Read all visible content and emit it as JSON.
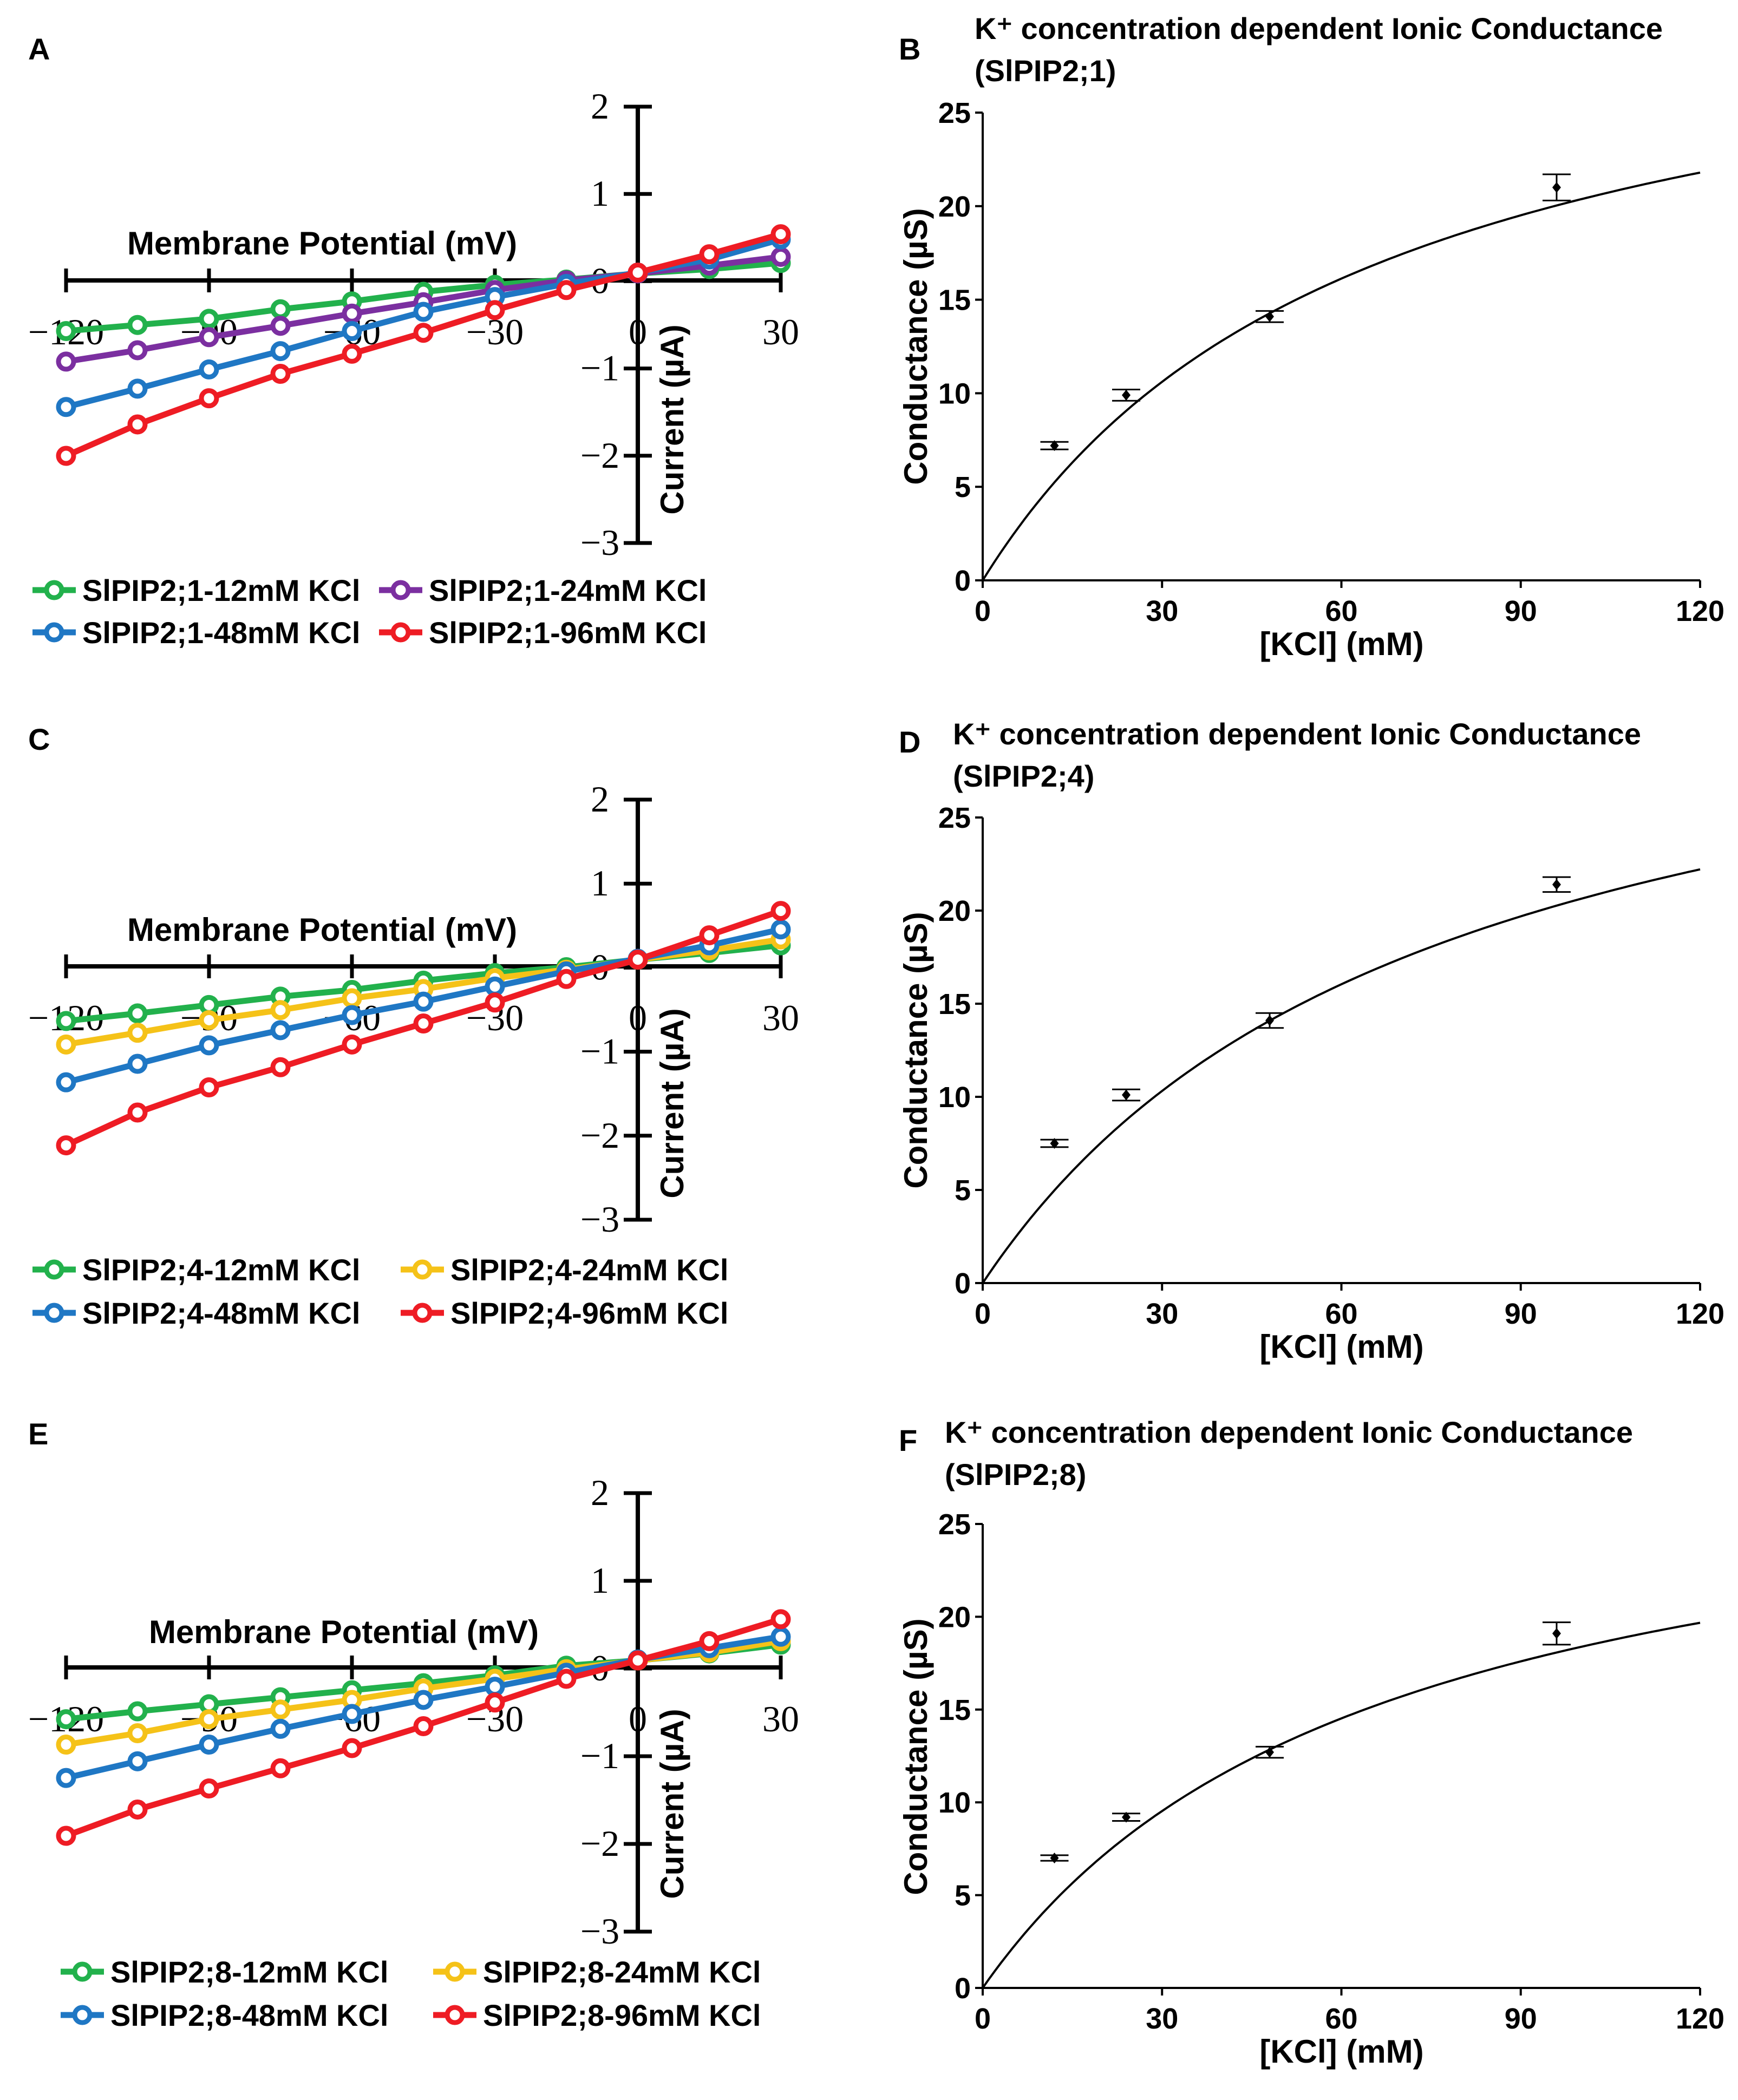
{
  "chart_data": [
    {
      "panel": "A",
      "type": "line",
      "title": "",
      "xlabel": "Membrane Potential (mV)",
      "ylabel": "Current (µA)",
      "xlim": [
        -120,
        30
      ],
      "ylim": [
        -3,
        2
      ],
      "x_ticks": [
        "−120",
        "−90",
        "−60",
        "−30",
        "0",
        "30"
      ],
      "y_ticks": [
        "2",
        "1",
        "0",
        "−1",
        "−2",
        "−3"
      ],
      "x": [
        -120,
        -105,
        -90,
        -75,
        -60,
        -45,
        -30,
        -15,
        0,
        15,
        30
      ],
      "series": [
        {
          "name": "SlPIP2;1-12mM KCl",
          "color": "#22b14c",
          "values": [
            -0.58,
            -0.51,
            -0.44,
            -0.33,
            -0.24,
            -0.13,
            -0.05,
            0.01,
            0.08,
            0.13,
            0.2
          ]
        },
        {
          "name": "SlPIP2;1-24mM KCl",
          "color": "#7b2fa0",
          "values": [
            -0.93,
            -0.8,
            -0.65,
            -0.52,
            -0.38,
            -0.25,
            -0.11,
            0.0,
            0.08,
            0.17,
            0.27
          ]
        },
        {
          "name": "SlPIP2;1-48mM KCl",
          "color": "#1f77c4",
          "values": [
            -1.45,
            -1.24,
            -1.02,
            -0.81,
            -0.58,
            -0.36,
            -0.19,
            -0.04,
            0.09,
            0.24,
            0.47
          ]
        },
        {
          "name": "SlPIP2;1-96mM KCl",
          "color": "#ee1c24",
          "values": [
            -2.01,
            -1.65,
            -1.35,
            -1.07,
            -0.84,
            -0.6,
            -0.34,
            -0.11,
            0.09,
            0.3,
            0.53
          ]
        }
      ]
    },
    {
      "panel": "B",
      "type": "line",
      "title": "K⁺ concentration dependent Ionic Conductance",
      "subtitle": "(SlPIP2;1)",
      "xlabel": "[KCl] (mM)",
      "ylabel": "Conductance (µS)",
      "xlim": [
        0,
        120
      ],
      "ylim": [
        0,
        25
      ],
      "x_ticks": [
        "0",
        "30",
        "60",
        "90",
        "120"
      ],
      "y_ticks": [
        "0",
        "5",
        "10",
        "15",
        "20",
        "25"
      ],
      "fit": {
        "model": "michaelis-menten",
        "vmax": 33.6,
        "km": 65
      },
      "points": {
        "x": [
          12,
          24,
          48,
          96
        ],
        "y": [
          7.2,
          9.9,
          14.1,
          21.0
        ],
        "err": [
          0.2,
          0.3,
          0.3,
          0.7
        ]
      }
    },
    {
      "panel": "C",
      "type": "line",
      "title": "",
      "xlabel": "Membrane Potential (mV)",
      "ylabel": "Current (µA)",
      "xlim": [
        -120,
        30
      ],
      "ylim": [
        -3,
        2
      ],
      "x_ticks": [
        "−120",
        "−90",
        "−60",
        "−30",
        "0",
        "30"
      ],
      "y_ticks": [
        "2",
        "1",
        "0",
        "−1",
        "−2",
        "−3"
      ],
      "x": [
        -120,
        -105,
        -90,
        -75,
        -60,
        -45,
        -30,
        -15,
        0,
        15,
        30
      ],
      "series": [
        {
          "name": "SlPIP2;4-12mM KCl",
          "color": "#22b14c",
          "values": [
            -0.65,
            -0.56,
            -0.46,
            -0.36,
            -0.28,
            -0.17,
            -0.08,
            -0.01,
            0.08,
            0.16,
            0.25
          ]
        },
        {
          "name": "SlPIP2;4-24mM KCl",
          "color": "#f5c218",
          "values": [
            -0.93,
            -0.79,
            -0.64,
            -0.52,
            -0.38,
            -0.27,
            -0.14,
            -0.04,
            0.08,
            0.19,
            0.32
          ]
        },
        {
          "name": "SlPIP2;4-48mM KCl",
          "color": "#1f77c4",
          "values": [
            -1.38,
            -1.16,
            -0.94,
            -0.76,
            -0.58,
            -0.42,
            -0.24,
            -0.06,
            0.09,
            0.25,
            0.44
          ]
        },
        {
          "name": "SlPIP2;4-96mM KCl",
          "color": "#ee1c24",
          "values": [
            -2.13,
            -1.74,
            -1.44,
            -1.2,
            -0.93,
            -0.68,
            -0.43,
            -0.15,
            0.08,
            0.37,
            0.66
          ]
        }
      ]
    },
    {
      "panel": "D",
      "type": "line",
      "title": "K⁺ concentration dependent Ionic Conductance",
      "subtitle": "(SlPIP2;4)",
      "xlabel": "[KCl] (mM)",
      "ylabel": "Conductance (µS)",
      "xlim": [
        0,
        120
      ],
      "ylim": [
        0,
        25
      ],
      "x_ticks": [
        "0",
        "30",
        "60",
        "90",
        "120"
      ],
      "y_ticks": [
        "0",
        "5",
        "10",
        "15",
        "20",
        "25"
      ],
      "fit": {
        "model": "michaelis-menten",
        "vmax": 36.1,
        "km": 75
      },
      "points": {
        "x": [
          12,
          24,
          48,
          96
        ],
        "y": [
          7.5,
          10.1,
          14.1,
          21.4
        ],
        "err": [
          0.2,
          0.3,
          0.4,
          0.4
        ]
      }
    },
    {
      "panel": "E",
      "type": "line",
      "title": "",
      "xlabel": "Membrane Potential (mV)",
      "ylabel": "Current (µA)",
      "xlim": [
        -120,
        30
      ],
      "ylim": [
        -3,
        2
      ],
      "x_ticks": [
        "−120",
        "−90",
        "−60",
        "−30",
        "0",
        "30"
      ],
      "y_ticks": [
        "2",
        "1",
        "0",
        "−1",
        "−2",
        "−3"
      ],
      "x": [
        -120,
        -105,
        -90,
        -75,
        -60,
        -45,
        -30,
        -15,
        0,
        15,
        30
      ],
      "series": [
        {
          "name": "SlPIP2;8-12mM KCl",
          "color": "#22b14c",
          "values": [
            -0.59,
            -0.5,
            -0.42,
            -0.34,
            -0.26,
            -0.18,
            -0.09,
            0.02,
            0.08,
            0.16,
            0.26
          ]
        },
        {
          "name": "SlPIP2;8-24mM KCl",
          "color": "#f5c218",
          "values": [
            -0.88,
            -0.75,
            -0.59,
            -0.48,
            -0.37,
            -0.24,
            -0.13,
            -0.02,
            0.08,
            0.17,
            0.3
          ]
        },
        {
          "name": "SlPIP2;8-48mM KCl",
          "color": "#1f77c4",
          "values": [
            -1.26,
            -1.07,
            -0.88,
            -0.7,
            -0.53,
            -0.37,
            -0.22,
            -0.06,
            0.09,
            0.22,
            0.35
          ]
        },
        {
          "name": "SlPIP2;8-96mM KCl",
          "color": "#ee1c24",
          "values": [
            -1.92,
            -1.62,
            -1.38,
            -1.15,
            -0.92,
            -0.67,
            -0.4,
            -0.13,
            0.08,
            0.3,
            0.55
          ]
        }
      ]
    },
    {
      "panel": "F",
      "type": "line",
      "title": "K⁺ concentration dependent Ionic Conductance",
      "subtitle": "(SlPIP2;8)",
      "xlabel": "[KCl] (mM)",
      "ylabel": "Conductance (µS)",
      "xlim": [
        0,
        120
      ],
      "ylim": [
        0,
        25
      ],
      "x_ticks": [
        "0",
        "30",
        "60",
        "90",
        "120"
      ],
      "y_ticks": [
        "0",
        "5",
        "10",
        "15",
        "20",
        "25"
      ],
      "fit": {
        "model": "michaelis-menten",
        "vmax": 30.5,
        "km": 66
      },
      "points": {
        "x": [
          12,
          24,
          48,
          96
        ],
        "y": [
          7.0,
          9.2,
          12.7,
          19.1
        ],
        "err": [
          0.15,
          0.2,
          0.3,
          0.6
        ]
      }
    }
  ]
}
